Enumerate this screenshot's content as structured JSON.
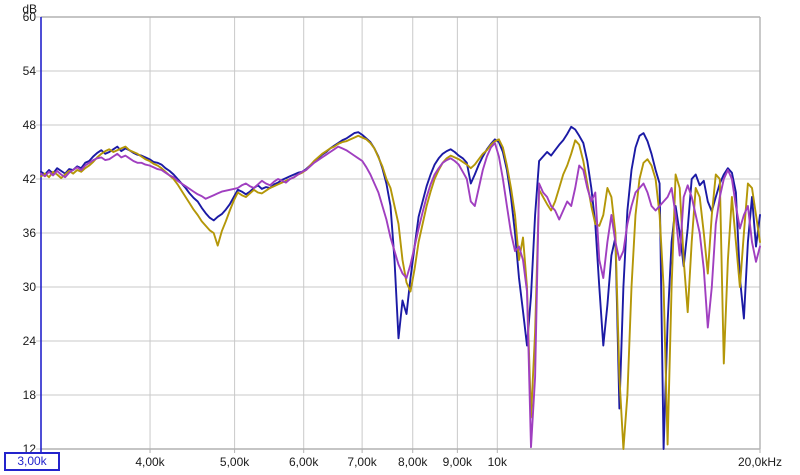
{
  "chart": {
    "y_axis": {
      "unit": "dB",
      "max": 60,
      "min": 12,
      "ticks": [
        {
          "db": 60,
          "label": "60"
        },
        {
          "db": 54,
          "label": "54"
        },
        {
          "db": 48,
          "label": "48"
        },
        {
          "db": 42,
          "label": "42"
        },
        {
          "db": 36,
          "label": "36"
        },
        {
          "db": 30,
          "label": "30"
        },
        {
          "db": 24,
          "label": "24"
        },
        {
          "db": 18,
          "label": "18"
        },
        {
          "db": 12,
          "label": "12"
        }
      ]
    },
    "x_axis": {
      "scale": "log",
      "unit": "Hz",
      "min_box_label": "3,00k",
      "ticks": [
        {
          "f": 4000,
          "label": "4,00k"
        },
        {
          "f": 5000,
          "label": "5,00k"
        },
        {
          "f": 6000,
          "label": "6,00k"
        },
        {
          "f": 7000,
          "label": "7,00k"
        },
        {
          "f": 8000,
          "label": "8,00k"
        },
        {
          "f": 9000,
          "label": "9,00k"
        },
        {
          "f": 10000,
          "label": "10k"
        },
        {
          "f": 20000,
          "label": "20,0kHz"
        }
      ]
    },
    "colors": {
      "axis_blue": "#2323cc",
      "grid": "#c9c9c9",
      "frame": "#b2b2b2",
      "text": "#1a1a1a",
      "trace_blue": "#1b1aa5",
      "trace_olive": "#b49708",
      "trace_purple": "#a03fc0"
    }
  },
  "chart_data": {
    "type": "line",
    "title": "",
    "ylabel": "dB",
    "x_unit": "Hz",
    "xlim": [
      3000,
      20000
    ],
    "ylim": [
      12,
      60
    ],
    "x_scale": "log",
    "sampling": "uniform-log: f_i = 3000 * (20000/3000)^(i/(n-1))",
    "grid": true,
    "legend": "none",
    "series": [
      {
        "name": "trace-blue",
        "color": "#1b1aa5",
        "db": [
          42.8,
          42.5,
          43.0,
          42.6,
          43.2,
          42.9,
          42.6,
          43.1,
          43.0,
          43.4,
          43.2,
          43.8,
          44.0,
          44.5,
          44.9,
          45.2,
          44.8,
          45.0,
          45.3,
          45.6,
          45.1,
          45.4,
          45.2,
          44.9,
          44.7,
          44.6,
          44.4,
          44.2,
          43.9,
          43.8,
          43.6,
          43.2,
          42.9,
          42.5,
          42.0,
          41.5,
          41.0,
          40.4,
          39.9,
          39.5,
          38.8,
          38.2,
          37.7,
          37.4,
          37.8,
          38.1,
          38.6,
          39.2,
          40.0,
          40.8,
          40.6,
          40.3,
          40.6,
          41.0,
          41.3,
          40.9,
          41.1,
          41.0,
          41.4,
          41.6,
          41.9,
          42.1,
          42.3,
          42.5,
          42.7,
          42.8,
          43.1,
          43.5,
          43.9,
          44.3,
          44.7,
          45.0,
          45.4,
          45.7,
          46.0,
          46.3,
          46.5,
          46.8,
          47.1,
          47.2,
          46.9,
          46.5,
          46.1,
          45.4,
          44.5,
          43.2,
          41.5,
          39.0,
          33.0,
          24.3,
          28.5,
          27.0,
          31.0,
          34.5,
          37.8,
          39.5,
          41.2,
          42.5,
          43.6,
          44.3,
          44.8,
          45.1,
          45.3,
          45.0,
          44.6,
          44.3,
          43.8,
          41.5,
          42.5,
          43.6,
          44.5,
          45.3,
          45.9,
          46.4,
          46.1,
          45.0,
          43.0,
          40.0,
          36.0,
          31.0,
          27.3,
          23.5,
          29.0,
          38.0,
          44.0,
          44.5,
          45.0,
          44.6,
          45.2,
          45.8,
          46.3,
          47.0,
          47.8,
          47.5,
          46.8,
          46.0,
          44.0,
          41.0,
          37.0,
          30.0,
          23.5,
          28.0,
          33.5,
          35.5,
          16.5,
          30.0,
          38.5,
          43.0,
          45.5,
          46.8,
          47.1,
          46.2,
          44.8,
          43.0,
          41.5,
          12.0,
          26.0,
          35.0,
          39.0,
          36.0,
          32.3,
          36.5,
          42.0,
          42.5,
          41.3,
          41.8,
          39.5,
          38.4,
          40.0,
          41.5,
          42.5,
          43.2,
          42.7,
          40.5,
          31.0,
          26.5,
          35.0,
          40.0,
          34.5,
          38.0
        ]
      },
      {
        "name": "trace-olive",
        "color": "#b49708",
        "db": [
          42.3,
          42.6,
          42.2,
          42.8,
          42.5,
          42.1,
          42.5,
          42.9,
          42.6,
          43.0,
          42.8,
          43.2,
          43.5,
          43.9,
          44.4,
          44.8,
          45.1,
          45.3,
          45.0,
          45.2,
          45.4,
          45.6,
          45.2,
          45.0,
          44.8,
          44.5,
          44.2,
          44.0,
          43.7,
          43.5,
          43.2,
          42.8,
          42.4,
          42.0,
          41.4,
          40.7,
          40.0,
          39.3,
          38.6,
          38.0,
          37.3,
          36.8,
          36.3,
          36.0,
          34.6,
          36.2,
          37.3,
          38.5,
          39.6,
          40.5,
          40.2,
          40.0,
          40.4,
          40.8,
          40.5,
          40.4,
          40.7,
          41.0,
          41.2,
          41.4,
          41.6,
          41.8,
          42.0,
          42.2,
          42.5,
          42.7,
          43.0,
          43.5,
          44.0,
          44.4,
          44.8,
          45.1,
          45.4,
          45.6,
          45.9,
          46.1,
          46.2,
          46.4,
          46.6,
          46.8,
          46.6,
          46.4,
          46.0,
          45.4,
          44.4,
          43.4,
          42.0,
          41.0,
          39.0,
          37.0,
          33.0,
          30.5,
          29.5,
          32.0,
          35.0,
          37.0,
          39.0,
          40.6,
          42.0,
          43.0,
          43.8,
          44.3,
          44.6,
          44.4,
          44.2,
          43.9,
          43.6,
          43.2,
          43.6,
          44.2,
          44.8,
          45.2,
          45.8,
          46.2,
          46.4,
          45.5,
          43.5,
          41.0,
          38.0,
          33.0,
          35.5,
          30.0,
          15.5,
          25.0,
          40.8,
          40.0,
          39.2,
          38.5,
          39.5,
          41.0,
          42.5,
          43.5,
          44.8,
          46.3,
          45.8,
          44.0,
          41.5,
          39.0,
          37.0,
          36.8,
          38.0,
          41.0,
          40.0,
          36.0,
          20.0,
          12.0,
          18.0,
          30.0,
          38.0,
          42.0,
          43.8,
          44.2,
          43.5,
          42.0,
          38.0,
          30.0,
          12.5,
          30.0,
          42.5,
          41.0,
          33.0,
          27.2,
          35.0,
          41.0,
          40.0,
          36.0,
          31.5,
          38.0,
          42.5,
          42.0,
          21.5,
          33.0,
          40.0,
          35.0,
          30.0,
          36.0,
          41.5,
          41.0,
          38.0,
          35.0
        ]
      },
      {
        "name": "trace-purple",
        "color": "#a03fc0",
        "db": [
          42.6,
          42.3,
          42.8,
          42.4,
          42.9,
          42.5,
          42.2,
          42.7,
          43.0,
          43.3,
          43.0,
          43.5,
          43.8,
          44.1,
          44.3,
          44.4,
          44.1,
          44.2,
          44.5,
          44.8,
          44.4,
          44.6,
          44.3,
          44.0,
          43.8,
          43.8,
          43.6,
          43.5,
          43.3,
          43.1,
          43.0,
          42.7,
          42.4,
          42.2,
          41.8,
          41.5,
          41.2,
          40.9,
          40.6,
          40.3,
          40.1,
          39.8,
          40.0,
          40.2,
          40.4,
          40.6,
          40.7,
          40.8,
          40.9,
          41.0,
          41.3,
          41.5,
          41.2,
          41.0,
          41.4,
          41.8,
          41.5,
          41.3,
          41.7,
          42.0,
          41.8,
          41.6,
          42.0,
          42.2,
          42.5,
          42.8,
          43.0,
          43.4,
          43.8,
          44.1,
          44.4,
          44.7,
          45.0,
          45.3,
          45.6,
          45.4,
          45.2,
          44.9,
          44.6,
          44.3,
          44.0,
          43.3,
          42.5,
          41.5,
          40.5,
          39.0,
          37.5,
          35.5,
          34.0,
          32.5,
          31.5,
          31.0,
          32.5,
          34.5,
          36.5,
          38.3,
          40.0,
          41.4,
          42.5,
          43.2,
          43.8,
          44.1,
          44.3,
          44.0,
          43.6,
          42.8,
          42.0,
          39.5,
          39.0,
          41.0,
          43.0,
          44.5,
          45.5,
          46.0,
          44.5,
          42.0,
          39.0,
          36.0,
          34.0,
          34.5,
          33.0,
          29.5,
          12.2,
          20.0,
          41.5,
          40.5,
          40.0,
          39.0,
          38.5,
          37.5,
          38.5,
          39.5,
          39.0,
          41.0,
          43.5,
          43.0,
          41.0,
          39.5,
          40.5,
          33.0,
          31.0,
          35.0,
          38.0,
          35.0,
          33.0,
          34.0,
          37.0,
          39.0,
          40.5,
          41.0,
          41.5,
          40.5,
          39.0,
          38.5,
          39.0,
          39.5,
          40.0,
          41.0,
          38.0,
          33.5,
          40.0,
          41.3,
          40.0,
          38.0,
          36.0,
          32.0,
          25.5,
          30.0,
          37.0,
          40.0,
          42.0,
          43.0,
          42.0,
          39.0,
          36.5,
          38.0,
          39.0,
          35.0,
          32.8,
          34.5
        ]
      }
    ]
  }
}
